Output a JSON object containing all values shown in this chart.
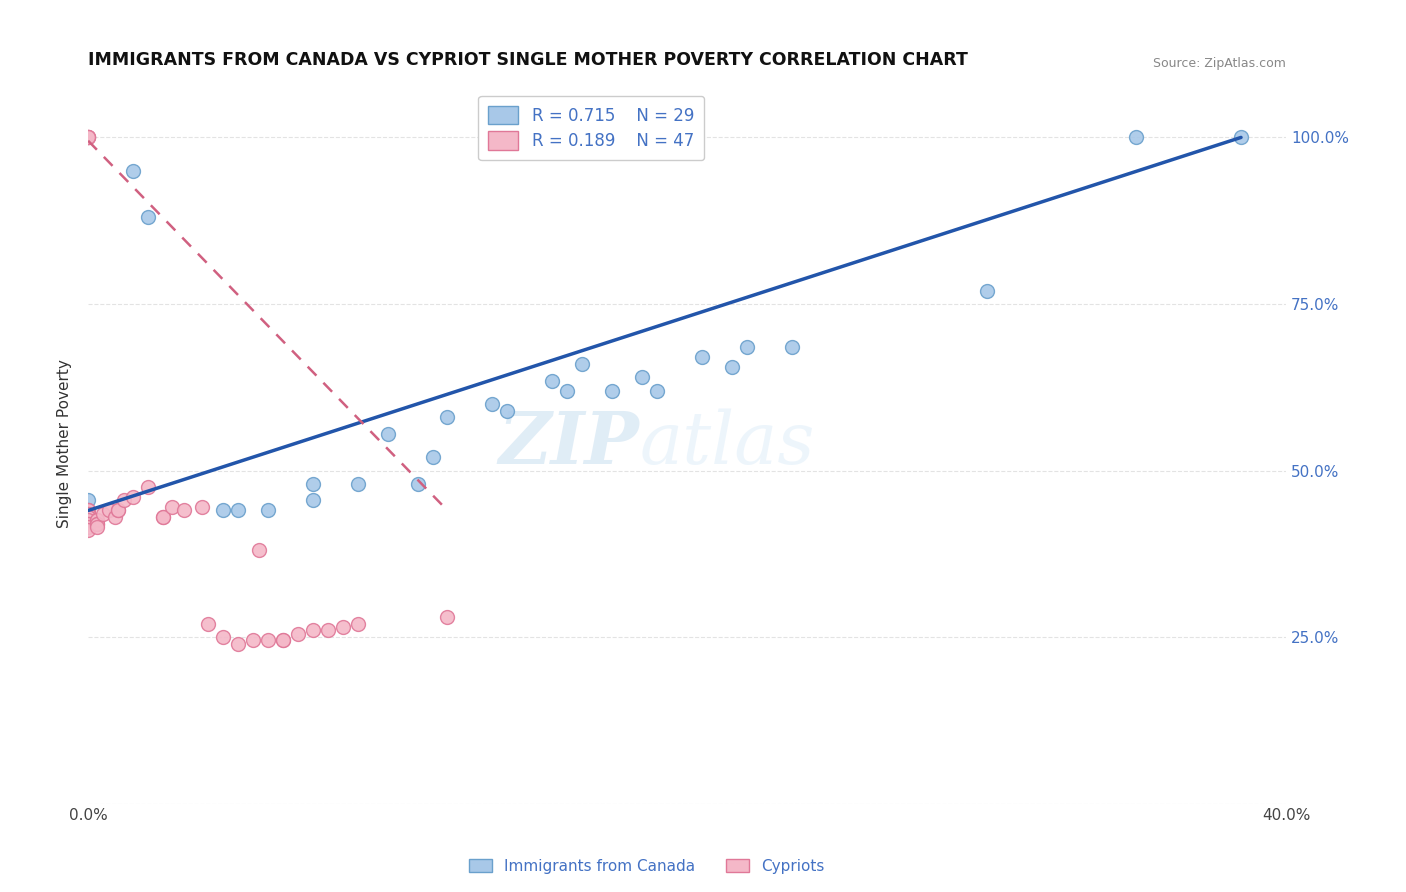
{
  "title": "IMMIGRANTS FROM CANADA VS CYPRIOT SINGLE MOTHER POVERTY CORRELATION CHART",
  "source": "Source: ZipAtlas.com",
  "ylabel": "Single Mother Poverty",
  "xlim": [
    0.0,
    0.4
  ],
  "ylim": [
    0.0,
    1.08
  ],
  "blue_color": "#a8c8e8",
  "blue_edge": "#6aa0cc",
  "pink_color": "#f4b8c8",
  "pink_edge": "#e07898",
  "blue_line_color": "#2255aa",
  "pink_line_color": "#d06080",
  "watermark_zip": "ZIP",
  "watermark_atlas": "atlas",
  "legend_R_blue": "R = 0.715",
  "legend_N_blue": "N = 29",
  "legend_R_pink": "R = 0.189",
  "legend_N_pink": "N = 47",
  "legend_color_blue": "#a8c8e8",
  "legend_color_pink": "#f4b8c8",
  "legend_edge_blue": "#6aa0cc",
  "legend_edge_pink": "#e07898",
  "grid_color": "#dddddd",
  "blue_scatter_x": [
    0.0,
    0.0,
    0.015,
    0.02,
    0.045,
    0.05,
    0.06,
    0.075,
    0.075,
    0.09,
    0.1,
    0.11,
    0.115,
    0.12,
    0.135,
    0.14,
    0.155,
    0.16,
    0.165,
    0.175,
    0.185,
    0.19,
    0.205,
    0.215,
    0.22,
    0.235,
    0.3,
    0.35,
    0.385
  ],
  "blue_scatter_y": [
    0.455,
    0.44,
    0.95,
    0.88,
    0.44,
    0.44,
    0.44,
    0.48,
    0.455,
    0.48,
    0.555,
    0.48,
    0.52,
    0.58,
    0.6,
    0.59,
    0.635,
    0.62,
    0.66,
    0.62,
    0.64,
    0.62,
    0.67,
    0.655,
    0.685,
    0.685,
    0.77,
    1.0,
    1.0
  ],
  "pink_scatter_x": [
    0.0,
    0.0,
    0.0,
    0.0,
    0.0,
    0.0,
    0.0,
    0.0,
    0.0,
    0.0,
    0.0,
    0.0,
    0.0,
    0.0,
    0.0,
    0.003,
    0.003,
    0.003,
    0.003,
    0.003,
    0.005,
    0.007,
    0.009,
    0.01,
    0.01,
    0.012,
    0.015,
    0.02,
    0.025,
    0.025,
    0.028,
    0.032,
    0.038,
    0.04,
    0.045,
    0.05,
    0.055,
    0.057,
    0.06,
    0.065,
    0.065,
    0.07,
    0.075,
    0.08,
    0.085,
    0.09,
    0.12
  ],
  "pink_scatter_y": [
    1.0,
    1.0,
    1.0,
    1.0,
    0.44,
    0.44,
    0.435,
    0.435,
    0.43,
    0.43,
    0.425,
    0.42,
    0.42,
    0.415,
    0.41,
    0.425,
    0.425,
    0.42,
    0.42,
    0.415,
    0.435,
    0.44,
    0.43,
    0.44,
    0.44,
    0.455,
    0.46,
    0.475,
    0.43,
    0.43,
    0.445,
    0.44,
    0.445,
    0.27,
    0.25,
    0.24,
    0.245,
    0.38,
    0.245,
    0.245,
    0.245,
    0.255,
    0.26,
    0.26,
    0.265,
    0.27,
    0.28
  ],
  "blue_line_x": [
    0.0,
    0.385
  ],
  "blue_line_y": [
    0.44,
    1.0
  ],
  "pink_line_x": [
    0.0,
    0.12
  ],
  "pink_line_y": [
    0.995,
    0.44
  ],
  "marker_size": 100
}
